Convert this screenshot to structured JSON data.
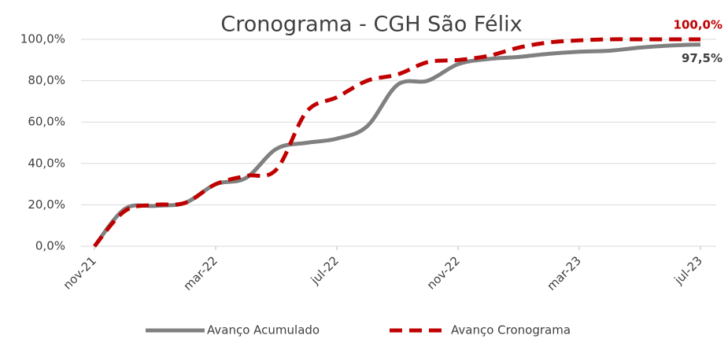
{
  "chart_data": {
    "type": "line",
    "title": "Cronograma - CGH São Félix",
    "categories": [
      "nov-21",
      null,
      null,
      null,
      "mar-22",
      null,
      null,
      null,
      "jul-22",
      null,
      null,
      null,
      "nov-22",
      null,
      null,
      null,
      "mar-23",
      null,
      null,
      null,
      "jul-23"
    ],
    "series": [
      {
        "name": "Avanço Acumulado",
        "color": "#808080",
        "dash": false,
        "values": [
          0,
          18,
          19.5,
          21,
          30,
          33,
          47,
          50,
          52,
          58,
          78,
          80,
          88,
          90.5,
          91.5,
          93,
          94,
          94.5,
          96,
          97,
          97.5
        ],
        "value_labels": [
          null,
          null,
          null,
          null,
          null,
          null,
          null,
          null,
          null,
          null,
          null,
          null,
          null,
          null,
          null,
          null,
          null,
          null,
          null,
          null,
          "97,5%"
        ]
      },
      {
        "name": "Avanço Cronograma",
        "color": "#c00000",
        "dash": true,
        "values": [
          0,
          17,
          20,
          21,
          30,
          34,
          37,
          65,
          72,
          80,
          83,
          89,
          90,
          92,
          96,
          98.5,
          99.5,
          100,
          100,
          100,
          100
        ],
        "value_labels": [
          null,
          null,
          null,
          null,
          null,
          null,
          null,
          null,
          null,
          null,
          null,
          null,
          null,
          null,
          null,
          null,
          null,
          null,
          null,
          null,
          "100,0%"
        ]
      }
    ],
    "ylim": [
      0,
      100
    ],
    "yticks": [
      {
        "value": 0,
        "label": "0,0%"
      },
      {
        "value": 20,
        "label": "20,0%"
      },
      {
        "value": 40,
        "label": "40,0%"
      },
      {
        "value": 60,
        "label": "60,0%"
      },
      {
        "value": 80,
        "label": "80,0%"
      },
      {
        "value": 100,
        "label": "100,0%"
      }
    ],
    "grid": true,
    "legend": "bottom"
  }
}
